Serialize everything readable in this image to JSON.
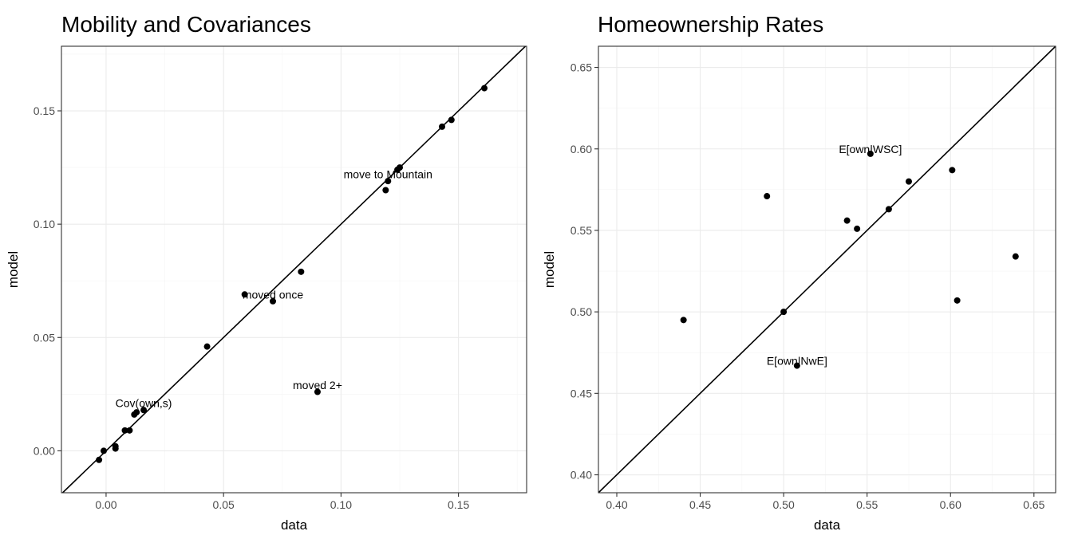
{
  "chart_data": [
    {
      "type": "scatter",
      "title": "Mobility and Covariances",
      "xlabel": "data",
      "ylabel": "model",
      "xlim": [
        -0.019,
        0.179
      ],
      "ylim": [
        -0.0185,
        0.1785
      ],
      "x_ticks": [
        0.0,
        0.05,
        0.1,
        0.15
      ],
      "x_tick_labels": [
        "0.00",
        "0.05",
        "0.10",
        "0.15"
      ],
      "y_ticks": [
        0.0,
        0.05,
        0.1,
        0.15
      ],
      "y_tick_labels": [
        "0.00",
        "0.05",
        "0.10",
        "0.15"
      ],
      "grid": true,
      "reference_line": "y = x",
      "points": [
        {
          "x": 0.161,
          "y": 0.16
        },
        {
          "x": 0.147,
          "y": 0.146
        },
        {
          "x": 0.143,
          "y": 0.143
        },
        {
          "x": 0.125,
          "y": 0.125
        },
        {
          "x": 0.124,
          "y": 0.124
        },
        {
          "x": 0.12,
          "y": 0.119
        },
        {
          "x": 0.119,
          "y": 0.115
        },
        {
          "x": 0.083,
          "y": 0.079
        },
        {
          "x": 0.071,
          "y": 0.066
        },
        {
          "x": 0.059,
          "y": 0.069
        },
        {
          "x": 0.043,
          "y": 0.046
        },
        {
          "x": 0.09,
          "y": 0.026
        },
        {
          "x": 0.016,
          "y": 0.018
        },
        {
          "x": 0.013,
          "y": 0.017
        },
        {
          "x": 0.012,
          "y": 0.016
        },
        {
          "x": 0.01,
          "y": 0.009
        },
        {
          "x": 0.008,
          "y": 0.009
        },
        {
          "x": 0.004,
          "y": 0.002
        },
        {
          "x": 0.004,
          "y": 0.001
        },
        {
          "x": -0.001,
          "y": 0.0
        },
        {
          "x": -0.003,
          "y": -0.004
        }
      ],
      "annotations": [
        {
          "text": "move to Mountain",
          "x": 0.12,
          "y": 0.122
        },
        {
          "text": "moved once",
          "x": 0.071,
          "y": 0.069
        },
        {
          "text": "moved 2+",
          "x": 0.09,
          "y": 0.029
        },
        {
          "text": "Cov(own,s)",
          "x": 0.016,
          "y": 0.021
        }
      ]
    },
    {
      "type": "scatter",
      "title": "Homeownership Rates",
      "xlabel": "data",
      "ylabel": "model",
      "xlim": [
        0.389,
        0.663
      ],
      "ylim": [
        0.389,
        0.663
      ],
      "x_ticks": [
        0.4,
        0.45,
        0.5,
        0.55,
        0.6,
        0.65
      ],
      "x_tick_labels": [
        "0.40",
        "0.45",
        "0.50",
        "0.55",
        "0.60",
        "0.65"
      ],
      "y_ticks": [
        0.4,
        0.45,
        0.5,
        0.55,
        0.6,
        0.65
      ],
      "y_tick_labels": [
        "0.40",
        "0.45",
        "0.50",
        "0.55",
        "0.60",
        "0.65"
      ],
      "grid": true,
      "reference_line": "y = x",
      "points": [
        {
          "x": 0.552,
          "y": 0.597
        },
        {
          "x": 0.601,
          "y": 0.587
        },
        {
          "x": 0.575,
          "y": 0.58
        },
        {
          "x": 0.49,
          "y": 0.571
        },
        {
          "x": 0.563,
          "y": 0.563
        },
        {
          "x": 0.538,
          "y": 0.556
        },
        {
          "x": 0.544,
          "y": 0.551
        },
        {
          "x": 0.639,
          "y": 0.534
        },
        {
          "x": 0.604,
          "y": 0.507
        },
        {
          "x": 0.5,
          "y": 0.5
        },
        {
          "x": 0.44,
          "y": 0.495
        },
        {
          "x": 0.508,
          "y": 0.467
        }
      ],
      "annotations": [
        {
          "text": "E[own|WSC]",
          "x": 0.552,
          "y": 0.6
        },
        {
          "text": "E[own|NwE]",
          "x": 0.508,
          "y": 0.47
        }
      ]
    }
  ]
}
